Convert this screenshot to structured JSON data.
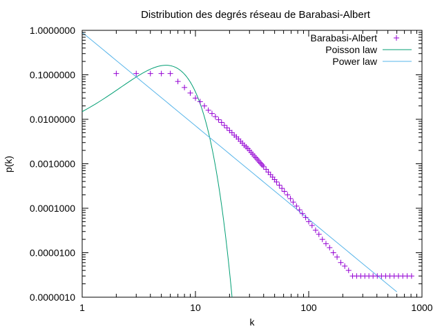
{
  "chart_data": {
    "type": "scatter",
    "title": "Distribution des degrés réseau de Barabasi-Albert",
    "xlabel": "k",
    "ylabel": "p(k)",
    "x_scale": "log",
    "y_scale": "log",
    "xlim": [
      1,
      1000
    ],
    "ylim": [
      1e-06,
      1
    ],
    "x_ticks": [
      {
        "value": 1,
        "label": "1"
      },
      {
        "value": 10,
        "label": "10"
      },
      {
        "value": 100,
        "label": "100"
      },
      {
        "value": 1000,
        "label": "1000"
      }
    ],
    "y_ticks": [
      {
        "value": 1,
        "label": "1.0000000"
      },
      {
        "value": 0.1,
        "label": "0.1000000"
      },
      {
        "value": 0.01,
        "label": "0.0100000"
      },
      {
        "value": 0.001,
        "label": "0.0010000"
      },
      {
        "value": 0.0001,
        "label": "0.0001000"
      },
      {
        "value": 1e-05,
        "label": "0.0000100"
      },
      {
        "value": 1e-06,
        "label": "0.0000010"
      }
    ],
    "grid": false,
    "legend_position": "top-right",
    "series": [
      {
        "name": "Barabasi-Albert",
        "kind": "points",
        "marker": "+",
        "color": "#9400D3",
        "x": [
          2,
          3,
          4,
          5,
          6,
          7,
          8,
          9,
          10,
          11,
          12,
          13,
          14,
          15,
          16,
          17,
          18,
          19,
          20,
          21,
          22,
          23,
          24,
          25,
          26,
          27,
          28,
          29,
          30,
          31,
          32,
          33,
          34,
          35,
          36,
          37,
          38,
          39,
          40,
          42,
          44,
          46,
          48,
          50,
          52,
          55,
          58,
          61,
          65,
          69,
          73,
          78,
          83,
          88,
          94,
          100,
          107,
          115,
          123,
          132,
          142,
          153,
          165,
          178,
          192,
          208,
          225,
          244,
          265,
          288,
          313,
          340,
          370,
          403,
          439,
          478,
          521,
          568,
          620,
          677,
          740,
          809
        ],
        "y": [
          0.107,
          0.107,
          0.107,
          0.107,
          0.107,
          0.071,
          0.052,
          0.039,
          0.03,
          0.025,
          0.02,
          0.016,
          0.0135,
          0.0115,
          0.0098,
          0.0085,
          0.0073,
          0.0064,
          0.0056,
          0.005,
          0.0044,
          0.004,
          0.0036,
          0.0032,
          0.0029,
          0.0026,
          0.0024,
          0.0022,
          0.002,
          0.0018,
          0.00165,
          0.0015,
          0.00138,
          0.00127,
          0.00117,
          0.00108,
          0.001,
          0.00093,
          0.00086,
          0.00075,
          0.00065,
          0.00057,
          0.0005,
          0.00044,
          0.00039,
          0.00033,
          0.00028,
          0.00024,
          0.0002,
          0.000165,
          0.000137,
          0.000112,
          9.2e-05,
          7.6e-05,
          6.2e-05,
          5e-05,
          4.1e-05,
          3.2e-05,
          2.6e-05,
          2e-05,
          1.6e-05,
          1.3e-05,
          1e-05,
          8e-06,
          6e-06,
          5e-06,
          4e-06,
          3e-06,
          3e-06,
          3e-06,
          3e-06,
          3e-06,
          3e-06,
          3e-06,
          3e-06,
          3e-06,
          3e-06,
          3e-06,
          3e-06,
          3e-06,
          3e-06,
          3e-06
        ]
      },
      {
        "name": "Poisson law",
        "kind": "line",
        "color": "#009E73",
        "lambda": 6,
        "x_range": [
          1,
          22
        ]
      },
      {
        "name": "Power law",
        "kind": "line",
        "color": "#56B4E9",
        "coefficient": 0.9,
        "exponent": -2.1,
        "x_range": [
          1,
          600
        ]
      }
    ]
  }
}
